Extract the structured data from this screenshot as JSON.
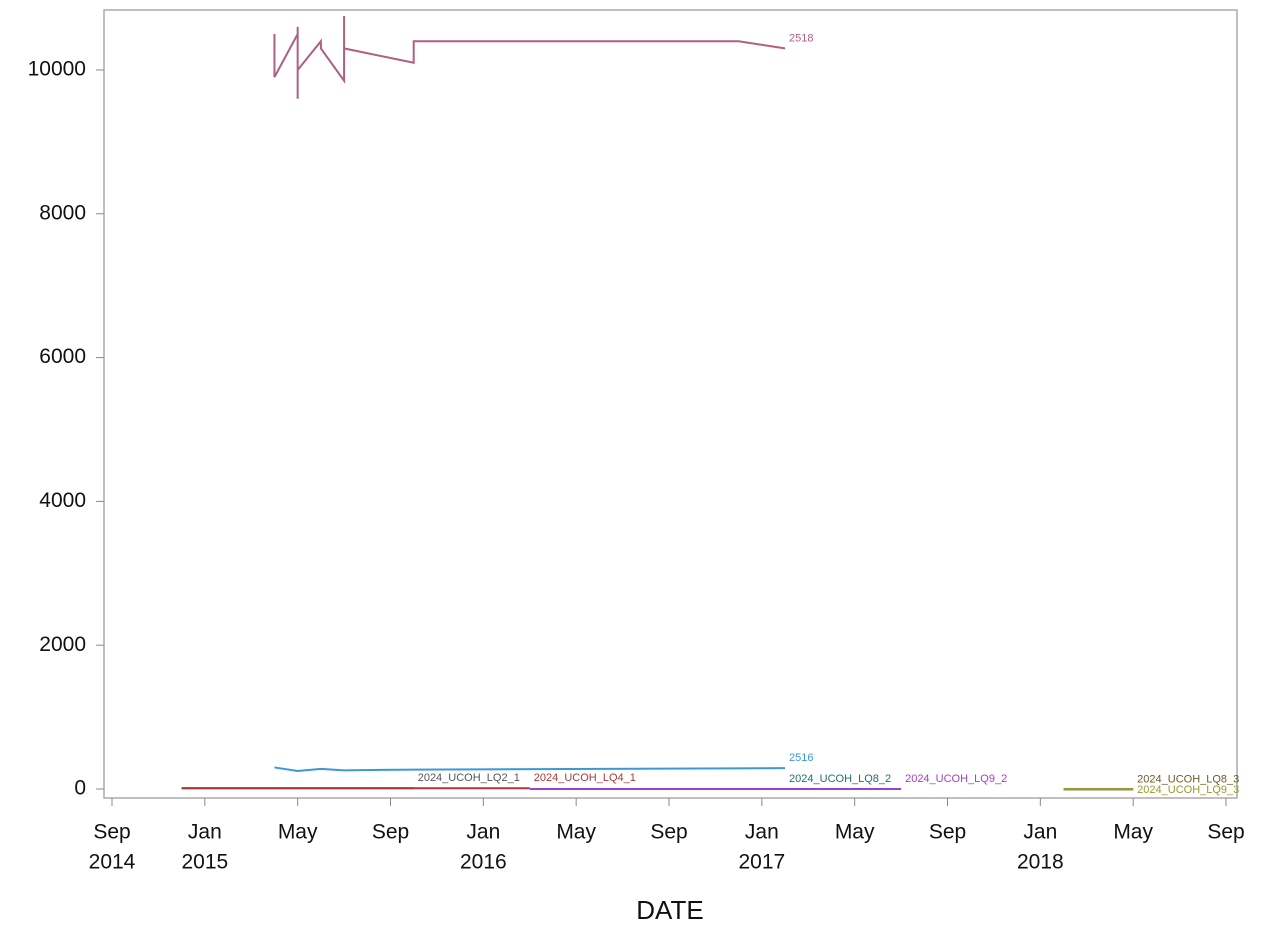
{
  "chart_data": {
    "type": "line",
    "x_label": "DATE",
    "xlim": [
      "2014-09",
      "2018-09"
    ],
    "xticks": [
      {
        "value": "2014-09",
        "label": "Sep",
        "sublabel": "2014"
      },
      {
        "value": "2015-01",
        "label": "Jan",
        "sublabel": "2015"
      },
      {
        "value": "2015-05",
        "label": "May"
      },
      {
        "value": "2015-09",
        "label": "Sep"
      },
      {
        "value": "2016-01",
        "label": "Jan",
        "sublabel": "2016"
      },
      {
        "value": "2016-05",
        "label": "May"
      },
      {
        "value": "2016-09",
        "label": "Sep"
      },
      {
        "value": "2017-01",
        "label": "Jan",
        "sublabel": "2017"
      },
      {
        "value": "2017-05",
        "label": "May"
      },
      {
        "value": "2017-09",
        "label": "Sep"
      },
      {
        "value": "2018-01",
        "label": "Jan",
        "sublabel": "2018"
      },
      {
        "value": "2018-05",
        "label": "May"
      },
      {
        "value": "2018-09",
        "label": "Sep"
      }
    ],
    "ylim": [
      -125,
      10834
    ],
    "yticks": [
      0,
      2000,
      4000,
      6000,
      8000,
      10000
    ],
    "series": [
      {
        "name": "2518",
        "color": "#b05f82",
        "x": [
          "2015-04",
          "2015-04",
          "2015-04",
          "2015-04",
          "2015-05",
          "2015-05",
          "2015-05",
          "2015-05",
          "2015-05",
          "2015-06",
          "2015-06",
          "2015-07",
          "2015-07",
          "2015-07",
          "2015-07",
          "2015-10",
          "2015-10",
          "2016-12",
          "2017-02"
        ],
        "values": [
          10500,
          10000,
          10450,
          9900,
          10500,
          9600,
          10600,
          9850,
          10000,
          10400,
          10300,
          9850,
          10750,
          10500,
          10300,
          10100,
          10400,
          10400,
          10300
        ]
      },
      {
        "name": "2516",
        "color": "#3a98d6",
        "x": [
          "2015-04",
          "2015-05",
          "2015-06",
          "2015-07",
          "2015-10",
          "2016-06",
          "2017-02"
        ],
        "values": [
          300,
          250,
          280,
          260,
          270,
          280,
          290
        ]
      },
      {
        "name": "2024_UCOH_LQ2_1",
        "color": "#555555",
        "x": [
          "2014-12",
          "2015-10"
        ],
        "values": [
          10,
          10
        ]
      },
      {
        "name": "2024_UCOH_LQ4_1",
        "color": "#a8393a",
        "x": [
          "2014-12",
          "2016-03"
        ],
        "values": [
          10,
          10
        ]
      },
      {
        "name": "2024_UCOH_LQ8_2",
        "color": "#1e6f6e",
        "x": [
          "2016-09",
          "2017-02"
        ],
        "values": [
          0,
          0
        ]
      },
      {
        "name": "2024_UCOH_LQ9_2",
        "color": "#a23fc6",
        "x": [
          "2016-03",
          "2017-07"
        ],
        "values": [
          0,
          0
        ]
      },
      {
        "name": "2024_UCOH_LQ8_3",
        "color": "#6b5a28",
        "x": [
          "2018-02",
          "2018-05"
        ],
        "values": [
          -5,
          -5
        ]
      },
      {
        "name": "2024_UCOH_LQ9_3",
        "color": "#9a9a2e",
        "x": [
          "2018-02",
          "2018-05"
        ],
        "values": [
          0,
          0
        ]
      }
    ]
  }
}
